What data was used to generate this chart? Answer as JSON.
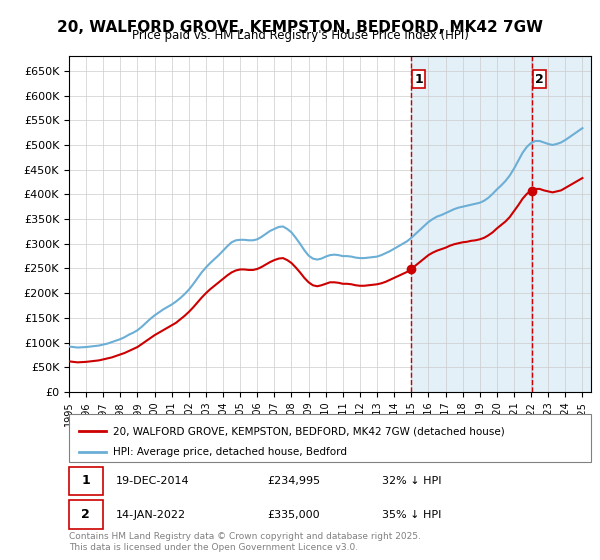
{
  "title": "20, WALFORD GROVE, KEMPSTON, BEDFORD, MK42 7GW",
  "subtitle": "Price paid vs. HM Land Registry's House Price Index (HPI)",
  "ylabel": "",
  "bg_color": "#ffffff",
  "plot_bg_color": "#ffffff",
  "grid_color": "#cccccc",
  "hpi_color": "#6baed6",
  "hpi_fill_color": "#c6dbef",
  "price_color": "#cc0000",
  "vline_color": "#cc0000",
  "vline_style": "--",
  "purchase1_year": 2014.97,
  "purchase1_price": 234995,
  "purchase1_label": "1",
  "purchase2_year": 2022.04,
  "purchase2_price": 335000,
  "purchase2_label": "2",
  "ylim": [
    0,
    680000
  ],
  "xlim": [
    1995,
    2025.5
  ],
  "yticks": [
    0,
    50000,
    100000,
    150000,
    200000,
    250000,
    300000,
    350000,
    400000,
    450000,
    500000,
    550000,
    600000,
    650000
  ],
  "ytick_labels": [
    "£0",
    "£50K",
    "£100K",
    "£150K",
    "£200K",
    "£250K",
    "£300K",
    "£350K",
    "£400K",
    "£450K",
    "£500K",
    "£550K",
    "£600K",
    "£650K"
  ],
  "legend1_label": "20, WALFORD GROVE, KEMPSTON, BEDFORD, MK42 7GW (detached house)",
  "legend2_label": "HPI: Average price, detached house, Bedford",
  "annotation1": "19-DEC-2014     £234,995     32% ↓ HPI",
  "annotation2": "14-JAN-2022     £335,000     35% ↓ HPI",
  "footer": "Contains HM Land Registry data © Crown copyright and database right 2025.\nThis data is licensed under the Open Government Licence v3.0.",
  "hpi_years": [
    1995.0,
    1995.25,
    1995.5,
    1995.75,
    1996.0,
    1996.25,
    1996.5,
    1996.75,
    1997.0,
    1997.25,
    1997.5,
    1997.75,
    1998.0,
    1998.25,
    1998.5,
    1998.75,
    1999.0,
    1999.25,
    1999.5,
    1999.75,
    2000.0,
    2000.25,
    2000.5,
    2000.75,
    2001.0,
    2001.25,
    2001.5,
    2001.75,
    2002.0,
    2002.25,
    2002.5,
    2002.75,
    2003.0,
    2003.25,
    2003.5,
    2003.75,
    2004.0,
    2004.25,
    2004.5,
    2004.75,
    2005.0,
    2005.25,
    2005.5,
    2005.75,
    2006.0,
    2006.25,
    2006.5,
    2006.75,
    2007.0,
    2007.25,
    2007.5,
    2007.75,
    2008.0,
    2008.25,
    2008.5,
    2008.75,
    2009.0,
    2009.25,
    2009.5,
    2009.75,
    2010.0,
    2010.25,
    2010.5,
    2010.75,
    2011.0,
    2011.25,
    2011.5,
    2011.75,
    2012.0,
    2012.25,
    2012.5,
    2012.75,
    2013.0,
    2013.25,
    2013.5,
    2013.75,
    2014.0,
    2014.25,
    2014.5,
    2014.75,
    2015.0,
    2015.25,
    2015.5,
    2015.75,
    2016.0,
    2016.25,
    2016.5,
    2016.75,
    2017.0,
    2017.25,
    2017.5,
    2017.75,
    2018.0,
    2018.25,
    2018.5,
    2018.75,
    2019.0,
    2019.25,
    2019.5,
    2019.75,
    2020.0,
    2020.25,
    2020.5,
    2020.75,
    2021.0,
    2021.25,
    2021.5,
    2021.75,
    2022.0,
    2022.25,
    2022.5,
    2022.75,
    2023.0,
    2023.25,
    2023.5,
    2023.75,
    2024.0,
    2024.25,
    2024.5,
    2024.75,
    2025.0
  ],
  "hpi_values": [
    92000,
    91000,
    90000,
    90500,
    91000,
    92000,
    93000,
    94000,
    96000,
    98000,
    101000,
    104000,
    107000,
    111000,
    116000,
    120000,
    125000,
    132000,
    140000,
    148000,
    155000,
    161000,
    167000,
    172000,
    177000,
    183000,
    190000,
    198000,
    207000,
    218000,
    230000,
    242000,
    252000,
    261000,
    269000,
    277000,
    286000,
    295000,
    303000,
    307000,
    308000,
    308000,
    307000,
    307000,
    309000,
    314000,
    320000,
    326000,
    330000,
    334000,
    335000,
    330000,
    323000,
    312000,
    300000,
    287000,
    276000,
    270000,
    268000,
    270000,
    274000,
    277000,
    278000,
    277000,
    275000,
    275000,
    274000,
    272000,
    271000,
    271000,
    272000,
    273000,
    274000,
    277000,
    281000,
    285000,
    290000,
    295000,
    300000,
    305000,
    312000,
    320000,
    328000,
    336000,
    344000,
    350000,
    355000,
    358000,
    362000,
    366000,
    370000,
    373000,
    375000,
    377000,
    379000,
    381000,
    383000,
    387000,
    393000,
    401000,
    410000,
    418000,
    427000,
    438000,
    452000,
    468000,
    484000,
    496000,
    504000,
    508000,
    508000,
    505000,
    502000,
    500000,
    502000,
    505000,
    510000,
    516000,
    522000,
    528000,
    534000
  ],
  "price_years": [
    1995.0,
    1995.25,
    1995.5,
    1995.75,
    1996.0,
    1996.25,
    1996.5,
    1996.75,
    1997.0,
    1997.25,
    1997.5,
    1997.75,
    1998.0,
    1998.25,
    1998.5,
    1998.75,
    1999.0,
    1999.25,
    1999.5,
    1999.75,
    2000.0,
    2000.25,
    2000.5,
    2000.75,
    2001.0,
    2001.25,
    2001.5,
    2001.75,
    2002.0,
    2002.25,
    2002.5,
    2002.75,
    2003.0,
    2003.25,
    2003.5,
    2003.75,
    2004.0,
    2004.25,
    2004.5,
    2004.75,
    2005.0,
    2005.25,
    2005.5,
    2005.75,
    2006.0,
    2006.25,
    2006.5,
    2006.75,
    2007.0,
    2007.25,
    2007.5,
    2007.75,
    2008.0,
    2008.25,
    2008.5,
    2008.75,
    2009.0,
    2009.25,
    2009.5,
    2009.75,
    2010.0,
    2010.25,
    2010.5,
    2010.75,
    2011.0,
    2011.25,
    2011.5,
    2011.75,
    2012.0,
    2012.25,
    2012.5,
    2012.75,
    2013.0,
    2013.25,
    2013.5,
    2013.75,
    2014.0,
    2014.25,
    2014.5,
    2014.75,
    2015.0,
    2015.25,
    2015.5,
    2015.75,
    2016.0,
    2016.25,
    2016.5,
    2016.75,
    2017.0,
    2017.25,
    2017.5,
    2017.75,
    2018.0,
    2018.25,
    2018.5,
    2018.75,
    2019.0,
    2019.25,
    2019.5,
    2019.75,
    2020.0,
    2020.25,
    2020.5,
    2020.75,
    2021.0,
    2021.25,
    2021.5,
    2021.75,
    2022.0,
    2022.25,
    2022.5,
    2022.75,
    2023.0,
    2023.25,
    2023.5,
    2023.75,
    2024.0,
    2024.25,
    2024.5,
    2024.75,
    2025.0
  ],
  "price_values": [
    62000,
    61000,
    60000,
    60500,
    61000,
    62000,
    63000,
    64000,
    66000,
    68000,
    70000,
    73000,
    76000,
    79000,
    83000,
    87000,
    91000,
    97000,
    103000,
    109000,
    115000,
    120000,
    125000,
    130000,
    135000,
    140000,
    147000,
    154000,
    162000,
    171000,
    181000,
    191000,
    200000,
    208000,
    215000,
    222000,
    229000,
    236000,
    242000,
    246000,
    248000,
    248000,
    247000,
    247000,
    249000,
    253000,
    258000,
    263000,
    267000,
    270000,
    271000,
    267000,
    261000,
    252000,
    242000,
    231000,
    222000,
    216000,
    214000,
    216000,
    219000,
    222000,
    222000,
    221000,
    219000,
    219000,
    218000,
    216000,
    215000,
    215000,
    216000,
    217000,
    218000,
    220000,
    223000,
    227000,
    231000,
    235000,
    239000,
    243000,
    249000,
    256000,
    263000,
    270000,
    277000,
    282000,
    286000,
    289000,
    292000,
    296000,
    299000,
    301000,
    303000,
    304000,
    306000,
    307000,
    309000,
    312000,
    317000,
    323000,
    331000,
    338000,
    345000,
    354000,
    366000,
    378000,
    391000,
    401000,
    407000,
    411000,
    411000,
    408000,
    406000,
    404000,
    406000,
    408000,
    413000,
    418000,
    423000,
    428000,
    433000
  ]
}
